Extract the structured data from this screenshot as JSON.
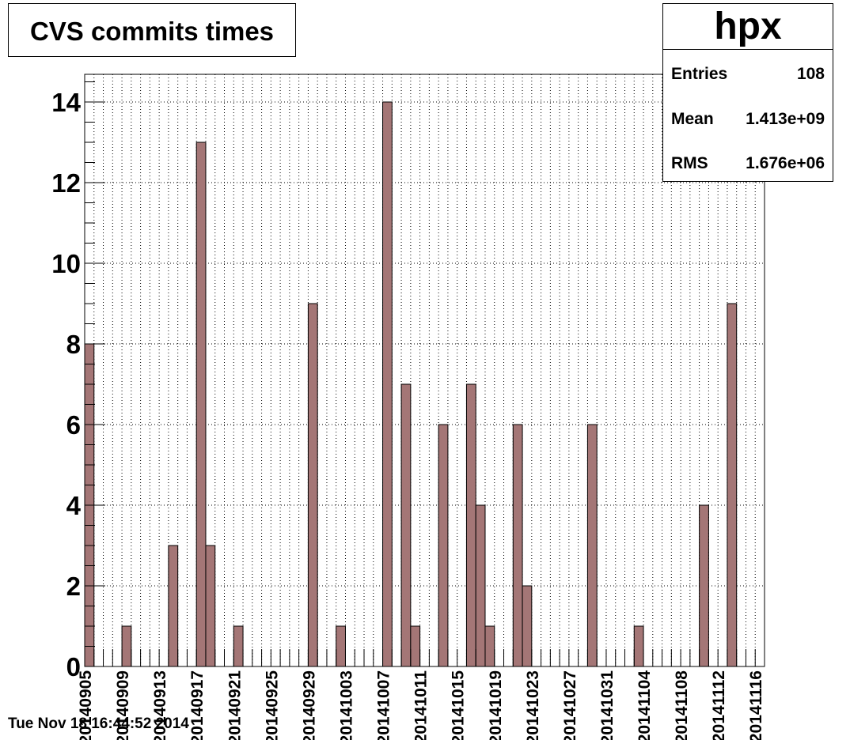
{
  "title": "CVS commits times",
  "stats": {
    "name": "hpx",
    "entries_label": "Entries",
    "entries_value": "108",
    "mean_label": "Mean",
    "mean_value": "1.413e+09",
    "rms_label": "RMS",
    "rms_value": "1.676e+06"
  },
  "datestamp": "Tue Nov 18 16:44:52 2014",
  "colors": {
    "bar_fill": "#a47676",
    "bar_stroke": "#000000",
    "grid": "#000000"
  },
  "chart_data": {
    "type": "bar",
    "title": "CVS commits times",
    "xlabel": "",
    "ylabel": "",
    "ylim": [
      0,
      14.7
    ],
    "grid": true,
    "legend": "top-right",
    "x_tick_labels": [
      "20140905",
      "20140909",
      "20140913",
      "20140917",
      "20140921",
      "20140925",
      "20140929",
      "20141003",
      "20141007",
      "20141011",
      "20141015",
      "20141019",
      "20141023",
      "20141027",
      "20141031",
      "20141104",
      "20141108",
      "20141112",
      "20141116"
    ],
    "y_tick_labels": [
      "0",
      "2",
      "4",
      "6",
      "8",
      "10",
      "12",
      "14"
    ],
    "bin_count": 73,
    "bins": [
      {
        "bin": 0,
        "value": 8
      },
      {
        "bin": 4,
        "value": 1
      },
      {
        "bin": 9,
        "value": 3
      },
      {
        "bin": 12,
        "value": 13
      },
      {
        "bin": 13,
        "value": 3
      },
      {
        "bin": 16,
        "value": 1
      },
      {
        "bin": 24,
        "value": 9
      },
      {
        "bin": 27,
        "value": 1
      },
      {
        "bin": 32,
        "value": 14
      },
      {
        "bin": 34,
        "value": 7
      },
      {
        "bin": 35,
        "value": 1
      },
      {
        "bin": 38,
        "value": 6
      },
      {
        "bin": 41,
        "value": 7
      },
      {
        "bin": 42,
        "value": 4
      },
      {
        "bin": 43,
        "value": 1
      },
      {
        "bin": 46,
        "value": 6
      },
      {
        "bin": 47,
        "value": 2
      },
      {
        "bin": 54,
        "value": 6
      },
      {
        "bin": 59,
        "value": 1
      },
      {
        "bin": 66,
        "value": 4
      },
      {
        "bin": 69,
        "value": 9
      }
    ]
  }
}
